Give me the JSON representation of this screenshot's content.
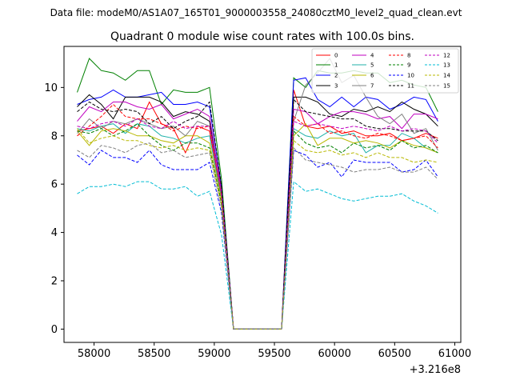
{
  "suptitle": "Data file: modeM0/AS1A07_165T01_9000003558_24080cztM0_level2_quad_clean.evt",
  "chart_data": {
    "type": "line",
    "title": "Quadrant 0 module wise count rates with 100.0s bins.",
    "xlabel": "",
    "ylabel": "",
    "x_offset_label": "+3.216e8",
    "x_axis_note": "x values are offsets from 3.216e8 seconds",
    "xlim": [
      57750,
      61050
    ],
    "ylim": [
      -0.55,
      11.7
    ],
    "xticks": [
      58000,
      58500,
      59000,
      59500,
      60000,
      60500,
      61000
    ],
    "yticks": [
      0,
      2,
      4,
      6,
      8,
      10
    ],
    "grid": false,
    "legend_position": "top-right",
    "x": [
      57860,
      57960,
      58060,
      58160,
      58260,
      58360,
      58460,
      58560,
      58660,
      58760,
      58860,
      58960,
      59060,
      59160,
      59260,
      59360,
      59460,
      59560,
      59660,
      59760,
      59860,
      59960,
      60060,
      60160,
      60260,
      60360,
      60460,
      60560,
      60660,
      60760,
      60860
    ],
    "series": [
      {
        "name": "0",
        "color": "#ff0000",
        "dash": "solid",
        "values": [
          8.2,
          8.3,
          8.4,
          8.1,
          8.5,
          8.3,
          9.4,
          8.5,
          8.3,
          7.3,
          8.4,
          8.2,
          5.5,
          0,
          0,
          0,
          0,
          0,
          9.9,
          8.4,
          8.3,
          8.4,
          8.1,
          8.2,
          8.0,
          8.0,
          8.1,
          7.8,
          7.9,
          8.1,
          7.9
        ]
      },
      {
        "name": "1",
        "color": "#008000",
        "dash": "solid",
        "values": [
          9.8,
          11.2,
          10.7,
          10.6,
          10.3,
          10.7,
          10.7,
          9.3,
          9.9,
          9.8,
          9.8,
          10.0,
          6.2,
          0,
          0,
          0,
          0,
          0,
          10.4,
          10.0,
          10.7,
          10.6,
          10.6,
          10.7,
          10.6,
          10.6,
          10.2,
          10.3,
          10.1,
          10.0,
          9.0
        ]
      },
      {
        "name": "2",
        "color": "#0000ff",
        "dash": "solid",
        "values": [
          9.3,
          9.5,
          9.6,
          9.9,
          9.6,
          9.6,
          9.7,
          9.8,
          9.3,
          9.3,
          9.4,
          9.2,
          5.9,
          0,
          0,
          0,
          0,
          0,
          10.3,
          10.4,
          9.5,
          9.2,
          9.6,
          9.2,
          9.6,
          9.5,
          9.1,
          9.3,
          9.6,
          9.5,
          8.6
        ]
      },
      {
        "name": "3",
        "color": "#000000",
        "dash": "solid",
        "values": [
          9.2,
          9.7,
          9.3,
          8.7,
          9.6,
          9.6,
          9.6,
          9.4,
          8.8,
          9.0,
          8.9,
          8.6,
          5.8,
          0,
          0,
          0,
          0,
          0,
          9.6,
          9.6,
          9.4,
          8.9,
          8.8,
          9.1,
          9.0,
          9.2,
          9.0,
          9.4,
          9.1,
          8.9,
          8.4
        ]
      },
      {
        "name": "4",
        "color": "#c000c0",
        "dash": "solid",
        "values": [
          8.6,
          9.2,
          9.0,
          9.4,
          9.4,
          9.2,
          9.1,
          9.3,
          8.7,
          8.9,
          9.1,
          8.8,
          5.7,
          0,
          0,
          0,
          0,
          0,
          9.1,
          9.0,
          8.5,
          8.8,
          9.0,
          9.0,
          8.9,
          8.7,
          8.8,
          8.3,
          8.9,
          8.9,
          8.7
        ]
      },
      {
        "name": "5",
        "color": "#20b2aa",
        "dash": "solid",
        "values": [
          8.3,
          8.2,
          8.4,
          8.5,
          8.1,
          8.5,
          8.4,
          8.0,
          7.9,
          7.7,
          7.9,
          8.0,
          5.4,
          0,
          0,
          0,
          0,
          0,
          8.3,
          8.0,
          7.9,
          8.2,
          8.0,
          8.1,
          7.3,
          7.6,
          7.6,
          8.1,
          7.9,
          7.5,
          7.3
        ]
      },
      {
        "name": "6",
        "color": "#b8b800",
        "dash": "solid",
        "values": [
          8.2,
          7.6,
          8.2,
          8.3,
          8.2,
          8.0,
          8.0,
          7.8,
          7.7,
          8.0,
          8.0,
          7.7,
          5.3,
          0,
          0,
          0,
          0,
          0,
          8.0,
          8.5,
          7.6,
          7.9,
          7.9,
          7.7,
          7.8,
          7.7,
          7.5,
          7.8,
          7.6,
          7.5,
          7.3
        ]
      },
      {
        "name": "7",
        "color": "#808080",
        "dash": "solid",
        "values": [
          8.1,
          8.7,
          8.3,
          8.6,
          8.5,
          8.7,
          8.5,
          8.3,
          8.4,
          8.0,
          8.6,
          8.4,
          5.6,
          0,
          0,
          0,
          0,
          0,
          8.6,
          10.1,
          10.6,
          11.2,
          10.2,
          10.5,
          9.6,
          8.8,
          8.5,
          8.9,
          8.1,
          8.3,
          7.4
        ]
      },
      {
        "name": "8",
        "color": "#ff0000",
        "dash": "dashed",
        "values": [
          8.0,
          8.4,
          8.8,
          9.3,
          8.8,
          8.7,
          8.7,
          8.5,
          8.2,
          8.4,
          8.3,
          8.4,
          5.5,
          0,
          0,
          0,
          0,
          0,
          8.8,
          8.4,
          8.5,
          8.1,
          8.2,
          8.0,
          7.9,
          8.1,
          8.0,
          7.8,
          7.9,
          8.0,
          7.5
        ]
      },
      {
        "name": "9",
        "color": "#008000",
        "dash": "dashed",
        "values": [
          8.2,
          8.1,
          8.3,
          8.0,
          8.2,
          8.5,
          8.0,
          7.6,
          7.4,
          7.7,
          7.7,
          7.5,
          5.2,
          0,
          0,
          0,
          0,
          0,
          8.2,
          7.7,
          7.5,
          7.6,
          7.3,
          7.7,
          7.5,
          7.6,
          7.4,
          7.8,
          7.5,
          7.6,
          7.3
        ]
      },
      {
        "name": "10",
        "color": "#0000ff",
        "dash": "dashed",
        "values": [
          7.2,
          6.8,
          7.4,
          7.1,
          7.1,
          6.9,
          7.4,
          6.8,
          6.6,
          6.6,
          6.6,
          6.9,
          4.8,
          0,
          0,
          0,
          0,
          0,
          7.4,
          7.2,
          6.7,
          6.9,
          6.3,
          7.0,
          6.9,
          6.9,
          6.9,
          6.5,
          6.6,
          7.0,
          6.3
        ]
      },
      {
        "name": "11",
        "color": "#000000",
        "dash": "dashed",
        "values": [
          9.0,
          9.4,
          9.1,
          9.0,
          9.1,
          9.0,
          8.5,
          8.8,
          8.3,
          8.6,
          8.8,
          9.4,
          5.9,
          0,
          0,
          0,
          0,
          0,
          9.5,
          9.0,
          8.9,
          8.8,
          8.7,
          8.7,
          8.4,
          8.3,
          8.3,
          8.2,
          8.2,
          8.2,
          7.8
        ]
      },
      {
        "name": "12",
        "color": "#c000c0",
        "dash": "dashed",
        "values": [
          8.4,
          8.3,
          8.5,
          8.6,
          8.4,
          8.7,
          8.4,
          8.3,
          8.6,
          8.3,
          8.4,
          8.4,
          5.6,
          0,
          0,
          0,
          0,
          0,
          8.6,
          8.4,
          8.5,
          8.4,
          8.3,
          8.4,
          8.3,
          8.2,
          8.4,
          8.2,
          8.3,
          8.2,
          7.7
        ]
      },
      {
        "name": "13",
        "color": "#00bcd4",
        "dash": "dashed",
        "values": [
          5.6,
          5.9,
          5.9,
          6.0,
          5.9,
          6.1,
          6.1,
          5.8,
          5.8,
          5.9,
          5.5,
          5.7,
          3.9,
          0,
          0,
          0,
          0,
          0,
          6.1,
          5.7,
          5.8,
          5.6,
          5.4,
          5.3,
          5.4,
          5.5,
          5.5,
          5.6,
          5.3,
          5.1,
          4.8
        ]
      },
      {
        "name": "14",
        "color": "#b8b800",
        "dash": "dashed",
        "values": [
          8.3,
          7.7,
          7.9,
          8.0,
          7.8,
          7.8,
          7.6,
          7.5,
          7.6,
          7.4,
          7.5,
          7.4,
          5.1,
          0,
          0,
          0,
          0,
          0,
          7.8,
          7.4,
          7.3,
          7.4,
          7.2,
          7.3,
          7.1,
          7.3,
          7.1,
          7.1,
          6.9,
          7.0,
          6.9
        ]
      },
      {
        "name": "15",
        "color": "#808080",
        "dash": "dashed",
        "values": [
          7.4,
          7.1,
          7.6,
          7.5,
          7.3,
          7.6,
          7.7,
          7.3,
          7.4,
          7.1,
          7.2,
          7.3,
          5.0,
          0,
          0,
          0,
          0,
          0,
          7.5,
          7.0,
          6.9,
          6.8,
          6.7,
          6.5,
          6.6,
          6.6,
          6.7,
          6.5,
          6.5,
          6.7,
          6.2
        ]
      }
    ]
  }
}
